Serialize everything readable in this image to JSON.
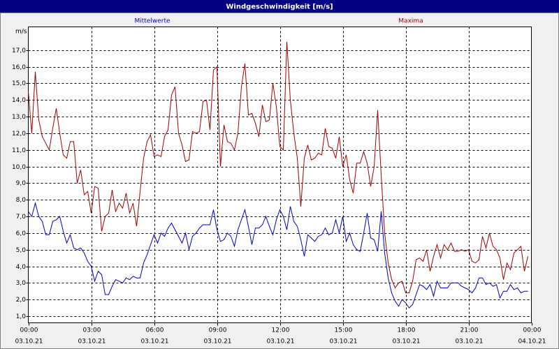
{
  "chart_data": {
    "type": "line",
    "title": "Windgeschwindigkeit [m/s]",
    "ylabel": "m/s",
    "grid": true,
    "x": [
      0,
      10,
      20,
      30,
      40,
      50,
      60,
      70,
      80,
      90,
      100,
      110,
      120,
      130,
      140,
      150,
      160,
      170,
      180,
      190,
      200,
      210,
      220,
      230,
      240,
      250,
      260,
      270,
      280,
      290,
      300,
      310,
      320,
      330,
      340,
      350,
      360,
      370,
      380,
      390,
      400,
      410,
      420,
      430,
      440,
      450,
      460,
      470,
      480,
      490,
      500,
      510,
      520,
      530,
      540,
      550,
      560,
      570,
      580,
      590,
      600,
      610,
      620,
      630,
      640,
      650,
      660,
      670,
      680,
      690,
      700,
      710,
      720,
      730,
      740,
      750,
      760,
      770,
      780,
      790,
      800,
      810,
      820,
      830,
      840,
      850,
      860,
      870,
      880,
      890,
      900,
      910,
      920,
      930,
      940,
      950,
      960,
      970,
      980,
      990,
      1000,
      1010,
      1020,
      1030,
      1040,
      1050,
      1060,
      1070,
      1080,
      1090,
      1100,
      1110,
      1120,
      1130,
      1140,
      1150,
      1160,
      1170,
      1180,
      1190,
      1200,
      1210,
      1220,
      1230,
      1240,
      1250,
      1260,
      1270,
      1280,
      1290,
      1300,
      1310,
      1320,
      1330,
      1340,
      1350,
      1360,
      1370,
      1380,
      1390,
      1400,
      1410,
      1420,
      1430
    ],
    "xlim": [
      0,
      1440
    ],
    "xticks": [
      {
        "value": 0,
        "label": "00:00",
        "date": "03.10.21"
      },
      {
        "value": 180,
        "label": "03:00",
        "date": "03.10.21"
      },
      {
        "value": 360,
        "label": "06:00",
        "date": "03.10.21"
      },
      {
        "value": 540,
        "label": "09:00",
        "date": "03.10.21"
      },
      {
        "value": 720,
        "label": "12:00",
        "date": "03.10.21"
      },
      {
        "value": 900,
        "label": "15:00",
        "date": "03.10.21"
      },
      {
        "value": 1080,
        "label": "18:00",
        "date": "03.10.21"
      },
      {
        "value": 1260,
        "label": "21:00",
        "date": "03.10.21"
      },
      {
        "value": 1440,
        "label": "00:00",
        "date": "04.10.21"
      }
    ],
    "ylim": [
      0.6,
      18.4
    ],
    "yticks": [
      {
        "value": 1,
        "label": "1,0"
      },
      {
        "value": 2,
        "label": "2,0"
      },
      {
        "value": 3,
        "label": "3,0"
      },
      {
        "value": 4,
        "label": "4,0"
      },
      {
        "value": 5,
        "label": "5,0"
      },
      {
        "value": 6,
        "label": "6,0"
      },
      {
        "value": 7,
        "label": "7,0"
      },
      {
        "value": 8,
        "label": "8,0"
      },
      {
        "value": 9,
        "label": "9,0"
      },
      {
        "value": 10,
        "label": "10,0"
      },
      {
        "value": 11,
        "label": "11,0"
      },
      {
        "value": 12,
        "label": "12,0"
      },
      {
        "value": 13,
        "label": "13,0"
      },
      {
        "value": 14,
        "label": "14,0"
      },
      {
        "value": 15,
        "label": "15,0"
      },
      {
        "value": 16,
        "label": "16,0"
      },
      {
        "value": 17,
        "label": "17,0"
      }
    ],
    "series": [
      {
        "name": "Mittelwerte",
        "color": "#0000c8",
        "values": [
          7.3,
          7,
          7.8,
          7,
          6.7,
          5.9,
          5.9,
          6.7,
          6.8,
          7,
          6.1,
          5.4,
          5.9,
          5.1,
          5,
          5.1,
          4.8,
          4.3,
          4,
          3.1,
          3.7,
          3.5,
          2.3,
          2.3,
          2.8,
          3.2,
          3.1,
          3,
          3.3,
          3.2,
          3.4,
          3.3,
          3.3,
          4.2,
          4.7,
          5.3,
          5.9,
          5.4,
          6,
          5.8,
          6.3,
          6.6,
          6.2,
          5.8,
          5.4,
          6,
          5,
          5.8,
          6,
          6.3,
          6.5,
          6.5,
          6.5,
          7.4,
          6.2,
          5.5,
          5.6,
          6,
          5.8,
          5.2,
          6.2,
          6.8,
          7.4,
          6.4,
          5.3,
          6.3,
          6.3,
          6.5,
          7,
          6.4,
          5.9,
          6.8,
          7.4,
          7,
          6.2,
          7.6,
          6.7,
          6.4,
          5.6,
          4.6,
          5.9,
          5.7,
          5.5,
          5.8,
          5.9,
          6.3,
          5.9,
          6,
          6.8,
          6,
          7,
          5.5,
          6,
          5.3,
          5,
          4.9,
          6,
          7.2,
          5.7,
          5.6,
          4.9,
          7.3,
          4.8,
          3.3,
          2.4,
          1.9,
          1.6,
          2,
          1.8,
          1.5,
          1.7,
          2.3,
          2.9,
          2.8,
          2.6,
          2.9,
          2.2,
          3.1,
          2.7,
          2.7,
          2.7,
          3,
          3,
          3,
          2.8,
          2.7,
          2.6,
          2.4,
          2.7,
          3.3,
          3.3,
          2.9,
          3,
          2.8,
          2.9,
          2.1,
          2.5,
          2.5,
          2.9,
          2.6,
          2.7,
          2.4,
          2.5,
          2.5
        ]
      },
      {
        "name": "Maxima",
        "color": "#a00000",
        "values": [
          14.5,
          12,
          15.7,
          12.8,
          11.8,
          11.4,
          11,
          12.3,
          13.5,
          12,
          10.7,
          10.5,
          11.5,
          11.5,
          9,
          9.8,
          8.3,
          8.5,
          7.2,
          8.8,
          8.7,
          6.1,
          7,
          7.2,
          8.6,
          7.3,
          7.8,
          7.5,
          8.4,
          7.2,
          7.8,
          6.4,
          8.5,
          10.5,
          11.5,
          11.9,
          10.6,
          10.7,
          10.6,
          11.8,
          12.2,
          14.3,
          14.8,
          12,
          11.3,
          10.3,
          10.4,
          12.1,
          12,
          12.1,
          13.9,
          14,
          12.2,
          15.8,
          16,
          10,
          12.5,
          11.5,
          11.4,
          11,
          12,
          14.8,
          16.2,
          13.1,
          13.2,
          12.6,
          11.8,
          13.7,
          12.7,
          12.8,
          15,
          13.6,
          11.2,
          11,
          17.5,
          14,
          12,
          10.5,
          7.6,
          10.5,
          11.3,
          10.4,
          10.5,
          10.8,
          10.7,
          12.3,
          11.2,
          11.1,
          10.5,
          11.8,
          10,
          10.7,
          9.2,
          8.4,
          10.2,
          10.2,
          10.9,
          10.2,
          8.8,
          10,
          13.4,
          9.5,
          6,
          4.2,
          3.2,
          2.7,
          3,
          3.1,
          2.4,
          2.4,
          3.1,
          4.4,
          4.5,
          4.3,
          5,
          3.7,
          4.6,
          5.3,
          4.5,
          5.3,
          5,
          5.4,
          4.9,
          4.9,
          5,
          4.9,
          5,
          4.3,
          4.2,
          4.4,
          5.8,
          5.1,
          6,
          5.2,
          5,
          4.5,
          3.2,
          4.2,
          3.8,
          4.8,
          5,
          5.2,
          3.7,
          4.6
        ]
      }
    ]
  }
}
